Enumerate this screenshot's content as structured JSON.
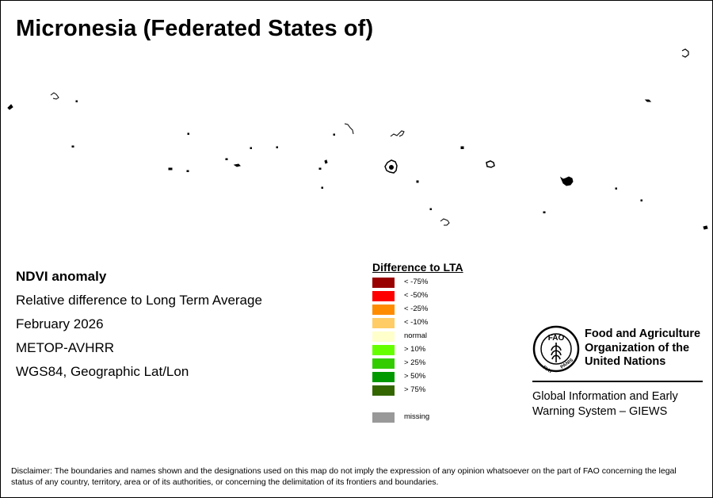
{
  "title": "Micronesia (Federated States of)",
  "map_info": {
    "heading": "NDVI anomaly",
    "line1": "Relative difference to Long Term Average",
    "line2": "February 2026",
    "line3": "METOP-AVHRR",
    "line4": "WGS84, Geographic Lat/Lon"
  },
  "legend": {
    "title": "Difference to LTA",
    "items": [
      {
        "label": "< -75%",
        "color": "#990000"
      },
      {
        "label": "< -50%",
        "color": "#ff0000"
      },
      {
        "label": "< -25%",
        "color": "#ff8c00"
      },
      {
        "label": "< -10%",
        "color": "#ffcc66"
      },
      {
        "label": "normal",
        "color": "#ffffcc"
      },
      {
        "label": "> 10%",
        "color": "#66ff00"
      },
      {
        "label": "> 25%",
        "color": "#33cc00"
      },
      {
        "label": "> 50%",
        "color": "#009900"
      },
      {
        "label": "> 75%",
        "color": "#336600"
      }
    ],
    "missing": {
      "label": "missing",
      "color": "#999999"
    }
  },
  "organization": {
    "name_line1": "Food and Agriculture",
    "name_line2": "Organization of the",
    "name_line3": "United Nations",
    "system_line1": "Global Information and Early",
    "system_line2": "Warning System – GIEWS",
    "logo_text_top": "FAO",
    "logo_text_left": "FIAT",
    "logo_text_right": "PANIS"
  },
  "disclaimer": "Disclaimer: The boundaries and names shown and the designations used on this map do not imply the expression of any opinion whatsoever on the part of FAO concerning the legal status of any country, territory, area or of its authorities, or concerning the delimitation of its frontiers and boundaries."
}
